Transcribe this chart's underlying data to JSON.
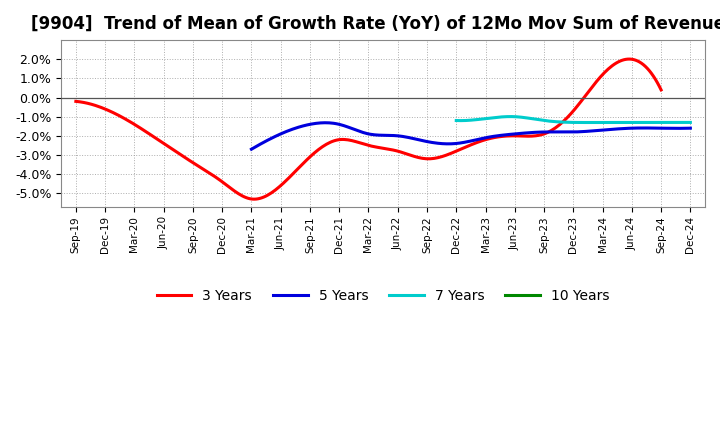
{
  "title": "[9904]  Trend of Mean of Growth Rate (YoY) of 12Mo Mov Sum of Revenues",
  "x_labels": [
    "Sep-19",
    "Dec-19",
    "Mar-20",
    "Jun-20",
    "Sep-20",
    "Dec-20",
    "Mar-21",
    "Jun-21",
    "Sep-21",
    "Dec-21",
    "Mar-22",
    "Jun-22",
    "Sep-22",
    "Dec-22",
    "Mar-23",
    "Jun-23",
    "Sep-23",
    "Dec-23",
    "Mar-24",
    "Jun-24",
    "Sep-24",
    "Dec-24"
  ],
  "ylim": [
    -0.057,
    0.03
  ],
  "yticks": [
    -0.05,
    -0.04,
    -0.03,
    -0.02,
    -0.01,
    0.0,
    0.01,
    0.02
  ],
  "series": {
    "3 Years": {
      "color": "#ff0000",
      "data_x": [
        0,
        1,
        2,
        3,
        4,
        5,
        6,
        7,
        8,
        9,
        10,
        11,
        12,
        13,
        14,
        15,
        16,
        17,
        18,
        19,
        20
      ],
      "data_y": [
        -0.002,
        -0.006,
        -0.014,
        -0.024,
        -0.034,
        -0.044,
        -0.053,
        -0.046,
        -0.031,
        -0.022,
        -0.025,
        -0.028,
        -0.032,
        -0.028,
        -0.022,
        -0.02,
        -0.019,
        -0.007,
        0.012,
        0.02,
        0.004
      ]
    },
    "5 Years": {
      "color": "#0000dd",
      "data_x": [
        6,
        7,
        8,
        9,
        10,
        11,
        12,
        13,
        14,
        15,
        16,
        17,
        18,
        19,
        20,
        21
      ],
      "data_y": [
        -0.027,
        -0.019,
        -0.014,
        -0.014,
        -0.019,
        -0.02,
        -0.023,
        -0.024,
        -0.021,
        -0.019,
        -0.018,
        -0.018,
        -0.017,
        -0.016,
        -0.016,
        -0.016
      ]
    },
    "7 Years": {
      "color": "#00cccc",
      "data_x": [
        13,
        14,
        15,
        16,
        17,
        18,
        19,
        20,
        21
      ],
      "data_y": [
        -0.012,
        -0.011,
        -0.01,
        -0.012,
        -0.013,
        -0.013,
        -0.013,
        -0.013,
        -0.013
      ]
    },
    "10 Years": {
      "color": "#008800",
      "data_x": [],
      "data_y": []
    }
  },
  "background_color": "#ffffff",
  "grid_color": "#999999",
  "title_fontsize": 12,
  "legend_fontsize": 10,
  "line_width": 2.2
}
